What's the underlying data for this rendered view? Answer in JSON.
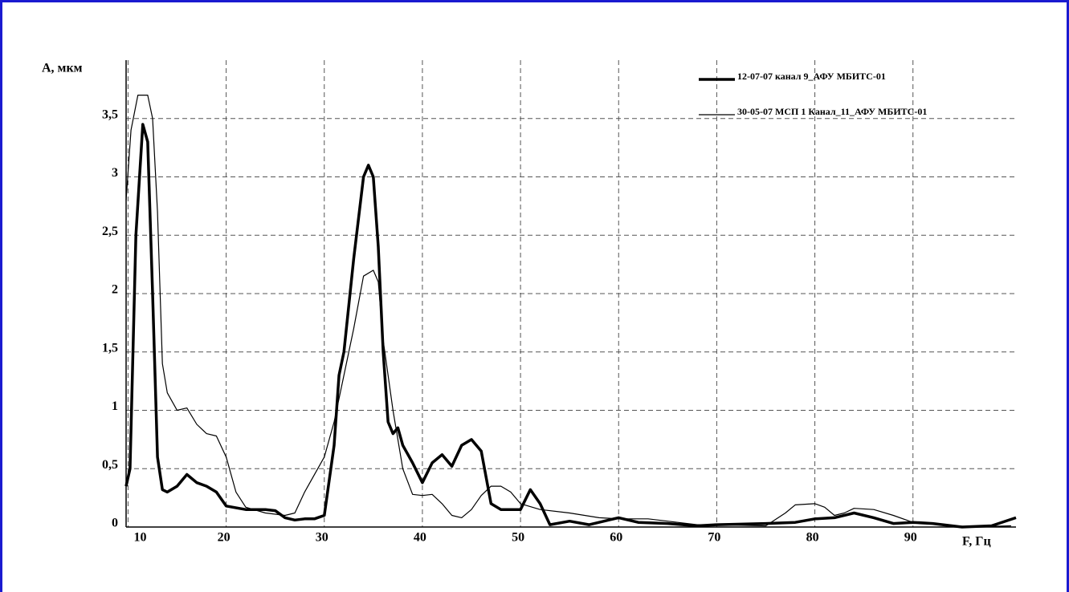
{
  "chart_data": {
    "type": "line",
    "y_label": "A, мкм",
    "x_label": "F, Гц",
    "xlim": [
      9.8,
      100.5
    ],
    "xticks": [
      10,
      20,
      30,
      40,
      50,
      60,
      70,
      80,
      90
    ],
    "ylim": [
      0,
      4.0
    ],
    "yticks": [
      0,
      {
        "value": 0.5,
        "label": "0,5"
      },
      1,
      {
        "value": 1.5,
        "label": "1,5"
      },
      2,
      {
        "value": 2.5,
        "label": "2,5"
      },
      3,
      {
        "value": 3.5,
        "label": "3,5"
      }
    ],
    "grid": true,
    "legend": "upper right",
    "series": [
      {
        "name": "12-07-07 канал 9_АФУ МБИТС-01",
        "color": "#000000",
        "linewidth": 3.5,
        "x": [
          9.8,
          10.2,
          10.8,
          11.5,
          12,
          12.5,
          13,
          13.5,
          14,
          15,
          16,
          17,
          18,
          19,
          20,
          22,
          24,
          25,
          26,
          27,
          28,
          29,
          30,
          31,
          31.5,
          32,
          33,
          34,
          34.5,
          35,
          35.5,
          36,
          36.5,
          37,
          37.5,
          38,
          39,
          40,
          41,
          42,
          43,
          44,
          45,
          46,
          47,
          48,
          49,
          50,
          51,
          52,
          53,
          55,
          57,
          60,
          62,
          65,
          68,
          70,
          75,
          78,
          80,
          82,
          84,
          86,
          88,
          90,
          92,
          95,
          98,
          100.5
        ],
        "values": [
          0.35,
          0.5,
          2.5,
          3.45,
          3.3,
          2.0,
          0.6,
          0.32,
          0.3,
          0.35,
          0.45,
          0.38,
          0.35,
          0.3,
          0.18,
          0.15,
          0.15,
          0.14,
          0.08,
          0.06,
          0.07,
          0.07,
          0.1,
          0.7,
          1.3,
          1.5,
          2.3,
          3.0,
          3.1,
          3.0,
          2.4,
          1.5,
          0.9,
          0.8,
          0.85,
          0.7,
          0.55,
          0.38,
          0.55,
          0.62,
          0.52,
          0.7,
          0.75,
          0.65,
          0.2,
          0.15,
          0.15,
          0.15,
          0.32,
          0.2,
          0.02,
          0.05,
          0.02,
          0.08,
          0.04,
          0.03,
          0.01,
          0.02,
          0.03,
          0.04,
          0.07,
          0.08,
          0.12,
          0.08,
          0.03,
          0.04,
          0.03,
          0,
          0.01,
          0.08
        ]
      },
      {
        "name": "30-05-07 МСП 1 Канал_11_АФУ МБИТС-01",
        "color": "#000000",
        "linewidth": 1.2,
        "x": [
          9.8,
          10.3,
          11,
          12,
          12.5,
          13,
          13.5,
          14,
          15,
          16,
          17,
          18,
          19,
          20,
          21,
          22,
          24,
          26,
          27,
          28,
          30,
          31,
          32,
          33,
          34,
          35,
          35.5,
          36,
          37,
          38,
          39,
          40,
          41,
          42,
          43,
          44,
          45,
          46,
          47,
          48,
          49,
          50,
          52,
          55,
          58,
          60,
          63,
          65,
          68,
          70,
          75,
          77,
          78,
          80,
          81,
          82,
          83,
          84,
          86,
          88,
          90,
          93,
          96,
          100
        ],
        "values": [
          2.8,
          3.4,
          3.7,
          3.7,
          3.5,
          2.7,
          1.4,
          1.15,
          1.0,
          1.02,
          0.88,
          0.8,
          0.78,
          0.6,
          0.3,
          0.17,
          0.12,
          0.1,
          0.12,
          0.3,
          0.6,
          0.9,
          1.3,
          1.7,
          2.15,
          2.2,
          2.1,
          1.6,
          1.0,
          0.5,
          0.28,
          0.27,
          0.28,
          0.2,
          0.1,
          0.08,
          0.15,
          0.27,
          0.35,
          0.35,
          0.3,
          0.2,
          0.15,
          0.12,
          0.08,
          0.07,
          0.07,
          0.05,
          0.02,
          0.02,
          0.01,
          0.12,
          0.19,
          0.2,
          0.17,
          0.1,
          0.12,
          0.16,
          0.15,
          0.1,
          0.04,
          0.02,
          0,
          0.01
        ]
      }
    ]
  }
}
